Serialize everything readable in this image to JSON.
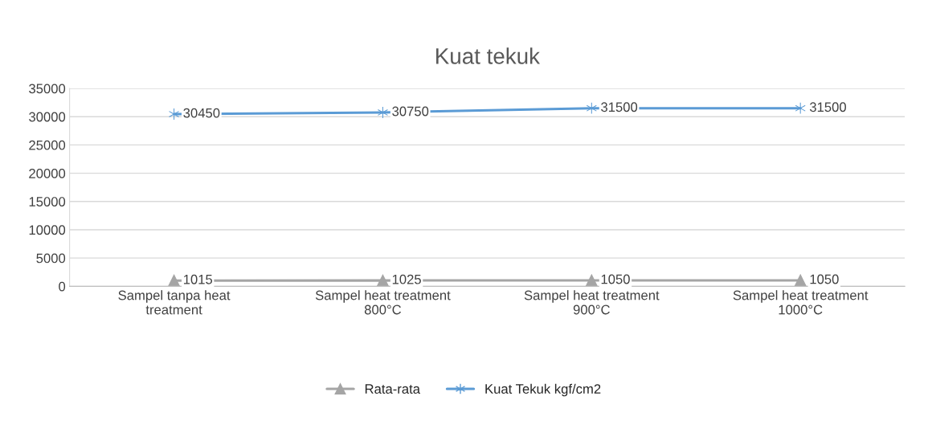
{
  "chart_data": {
    "type": "line",
    "title": "Kuat tekuk",
    "categories": [
      "Sampel tanpa heat\ntreatment",
      "Sampel heat treatment\n800°C",
      "Sampel heat treatment\n900°C",
      "Sampel heat treatment\n1000°C"
    ],
    "series": [
      {
        "name": "Rata-rata",
        "color": "#a5a5a5",
        "marker": "triangle",
        "values": [
          1015,
          1025,
          1050,
          1050
        ]
      },
      {
        "name": "Kuat Tekuk kgf/cm2",
        "color": "#5b9bd5",
        "marker": "cross",
        "values": [
          30450,
          30750,
          31500,
          31500
        ]
      }
    ],
    "ylim": [
      0,
      35000
    ],
    "yticks": [
      0,
      5000,
      10000,
      15000,
      20000,
      25000,
      30000,
      35000
    ],
    "grid": "y",
    "legend": "bottom",
    "data_labels": true,
    "line_style": "solid"
  }
}
